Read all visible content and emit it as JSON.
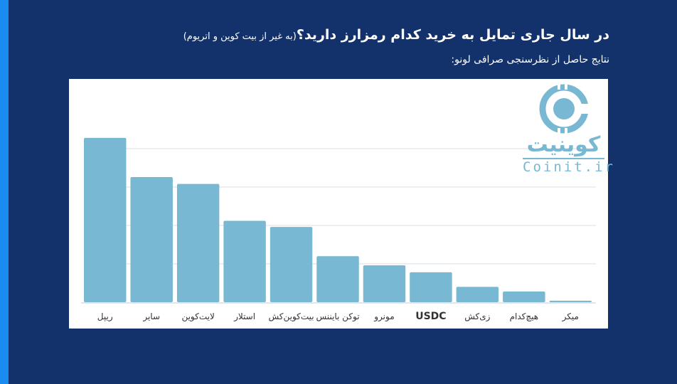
{
  "header": {
    "title": "در سال جاری تمایل به خرید کدام رمزارز دارید؟",
    "title_note": "(به غیر از بیت کوین و اتریوم)",
    "subtitle": "نتایج حاصل از نظرسنجی صرافی لونو:"
  },
  "logo": {
    "text_fa": "کوینیت",
    "text_en": "Coinit.ir"
  },
  "colors": {
    "bar": "#78b8d2",
    "background": "#13316b",
    "accent": "#1a8cf0"
  },
  "chart_data": {
    "type": "bar",
    "title": "در سال جاری تمایل به خرید کدام رمزارز دارید؟",
    "categories": [
      "ریپل",
      "سایر",
      "لایت‌کوین",
      "استلار",
      "بیت‌کوین‌کش",
      "توکن بایننس",
      "مونرو",
      "USDC",
      "زی‌کش",
      "هیچ‌کدام",
      "میکر"
    ],
    "values": [
      21.4,
      16.3,
      15.4,
      10.6,
      9.8,
      6.0,
      4.8,
      3.9,
      2.0,
      1.4,
      0.2
    ],
    "ylim": [
      0,
      25
    ],
    "gridlines": [
      5,
      10,
      15,
      20
    ],
    "grid": true,
    "xlabel": "",
    "ylabel": ""
  }
}
